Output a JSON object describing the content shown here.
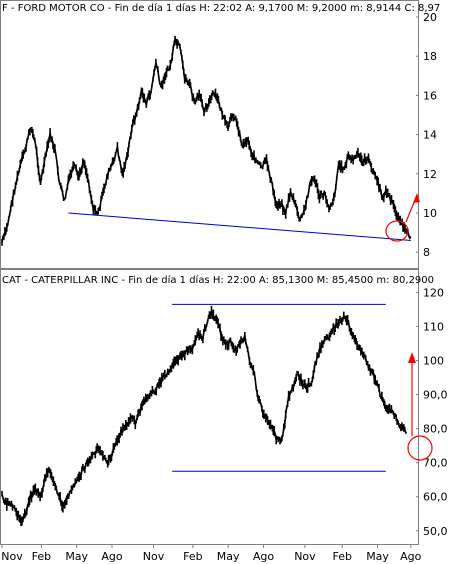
{
  "chart_data": [
    {
      "type": "line",
      "title": "F - FORD MOTOR CO - Fin de día 1 días H: 22:02 A: 9,1700 M: 9,2000 m: 8,9144 C: 8,97",
      "ylim": [
        7.5,
        20
      ],
      "y_ticks": [
        "20",
        "18",
        "16",
        "14",
        "12",
        "10",
        "8"
      ],
      "y_tick_values": [
        20,
        18,
        16,
        14,
        12,
        10,
        8
      ],
      "grid": false,
      "series": [
        {
          "values": [
            8.5,
            9.2,
            10.5,
            11.6,
            12.6,
            13.4,
            14.4,
            13.5,
            11.5,
            12.8,
            14.0,
            13.2,
            11.5,
            10.6,
            11.8,
            12.4,
            11.8,
            12.7,
            11.6,
            10.2,
            10.0,
            11.0,
            12.0,
            12.5,
            13.3,
            12.0,
            12.8,
            14.4,
            15.1,
            16.2,
            15.6,
            16.2,
            17.7,
            16.4,
            17.1,
            17.5,
            18.8,
            18.4,
            16.9,
            16.6,
            15.6,
            16.0,
            15.3,
            15.6,
            16.1,
            15.7,
            14.9,
            14.3,
            15.1,
            14.5,
            13.4,
            13.8,
            13.0,
            12.6,
            12.3,
            12.7,
            11.6,
            10.4,
            10.5,
            10.0,
            11.1,
            10.4,
            9.6,
            10.2,
            11.5,
            11.8,
            10.8,
            11.0,
            10.3,
            10.7,
            12.5,
            12.2,
            12.9,
            12.7,
            13.0,
            12.6,
            12.8,
            12.2,
            11.7,
            10.8,
            11.1,
            10.6,
            10.0,
            9.5,
            9.0,
            8.8
          ]
        }
      ],
      "annotations": [
        {
          "type": "trendline",
          "color": "#0000cc",
          "x": [
            0.16,
            0.985
          ],
          "y": [
            10.0,
            8.6
          ]
        }
      ]
    },
    {
      "type": "line",
      "title": "CAT - CATERPILLAR INC - Fin de día 1 días H: 22:00 A: 85,1300 M: 85,4500 m: 80,2900",
      "ylim": [
        47,
        121
      ],
      "y_ticks": [
        "120",
        "110",
        "100",
        "90,0",
        "80,0",
        "70,0",
        "60,0",
        "50,0"
      ],
      "y_tick_values": [
        120,
        110,
        100,
        90,
        80,
        70,
        60,
        50
      ],
      "grid": false,
      "series": [
        {
          "values": [
            60,
            58,
            58,
            55,
            53,
            55,
            60,
            62,
            60,
            65,
            68,
            64,
            60,
            57,
            60,
            63,
            65,
            68,
            70,
            72,
            74,
            73,
            70,
            72,
            76,
            79,
            81,
            83,
            82,
            85,
            88,
            90,
            91,
            93,
            95,
            97,
            99,
            100,
            102,
            103,
            104,
            108,
            106,
            111,
            114,
            112,
            108,
            104,
            106,
            103,
            105,
            107,
            100,
            96,
            88,
            84,
            82,
            79,
            76,
            78,
            88,
            92,
            96,
            94,
            92,
            94,
            100,
            104,
            106,
            108,
            110,
            112,
            113,
            110,
            106,
            104,
            102,
            98,
            96,
            92,
            88,
            85,
            86,
            82,
            80,
            79
          ]
        }
      ],
      "annotations": [
        {
          "type": "hline",
          "color": "#0000cc",
          "y": 116.5,
          "x": [
            0.41,
            0.925
          ]
        },
        {
          "type": "hline",
          "color": "#0000cc",
          "y": 67.5,
          "x": [
            0.41,
            0.925
          ]
        }
      ]
    }
  ],
  "x_axis": {
    "labels": [
      "Nov",
      "Feb",
      "May",
      "Ago",
      "Nov",
      "Feb",
      "May",
      "Ago",
      "Nov",
      "Feb",
      "May",
      "Ago"
    ],
    "label_positions_rel": [
      0.0,
      0.095,
      0.18,
      0.265,
      0.365,
      0.46,
      0.545,
      0.63,
      0.73,
      0.82,
      0.905,
      0.985
    ]
  },
  "colors": {
    "price": "#000000",
    "trendline": "#0000cc",
    "annotation": "#ff0000",
    "frame": "#7f7f7f",
    "background": "#ffffff"
  }
}
